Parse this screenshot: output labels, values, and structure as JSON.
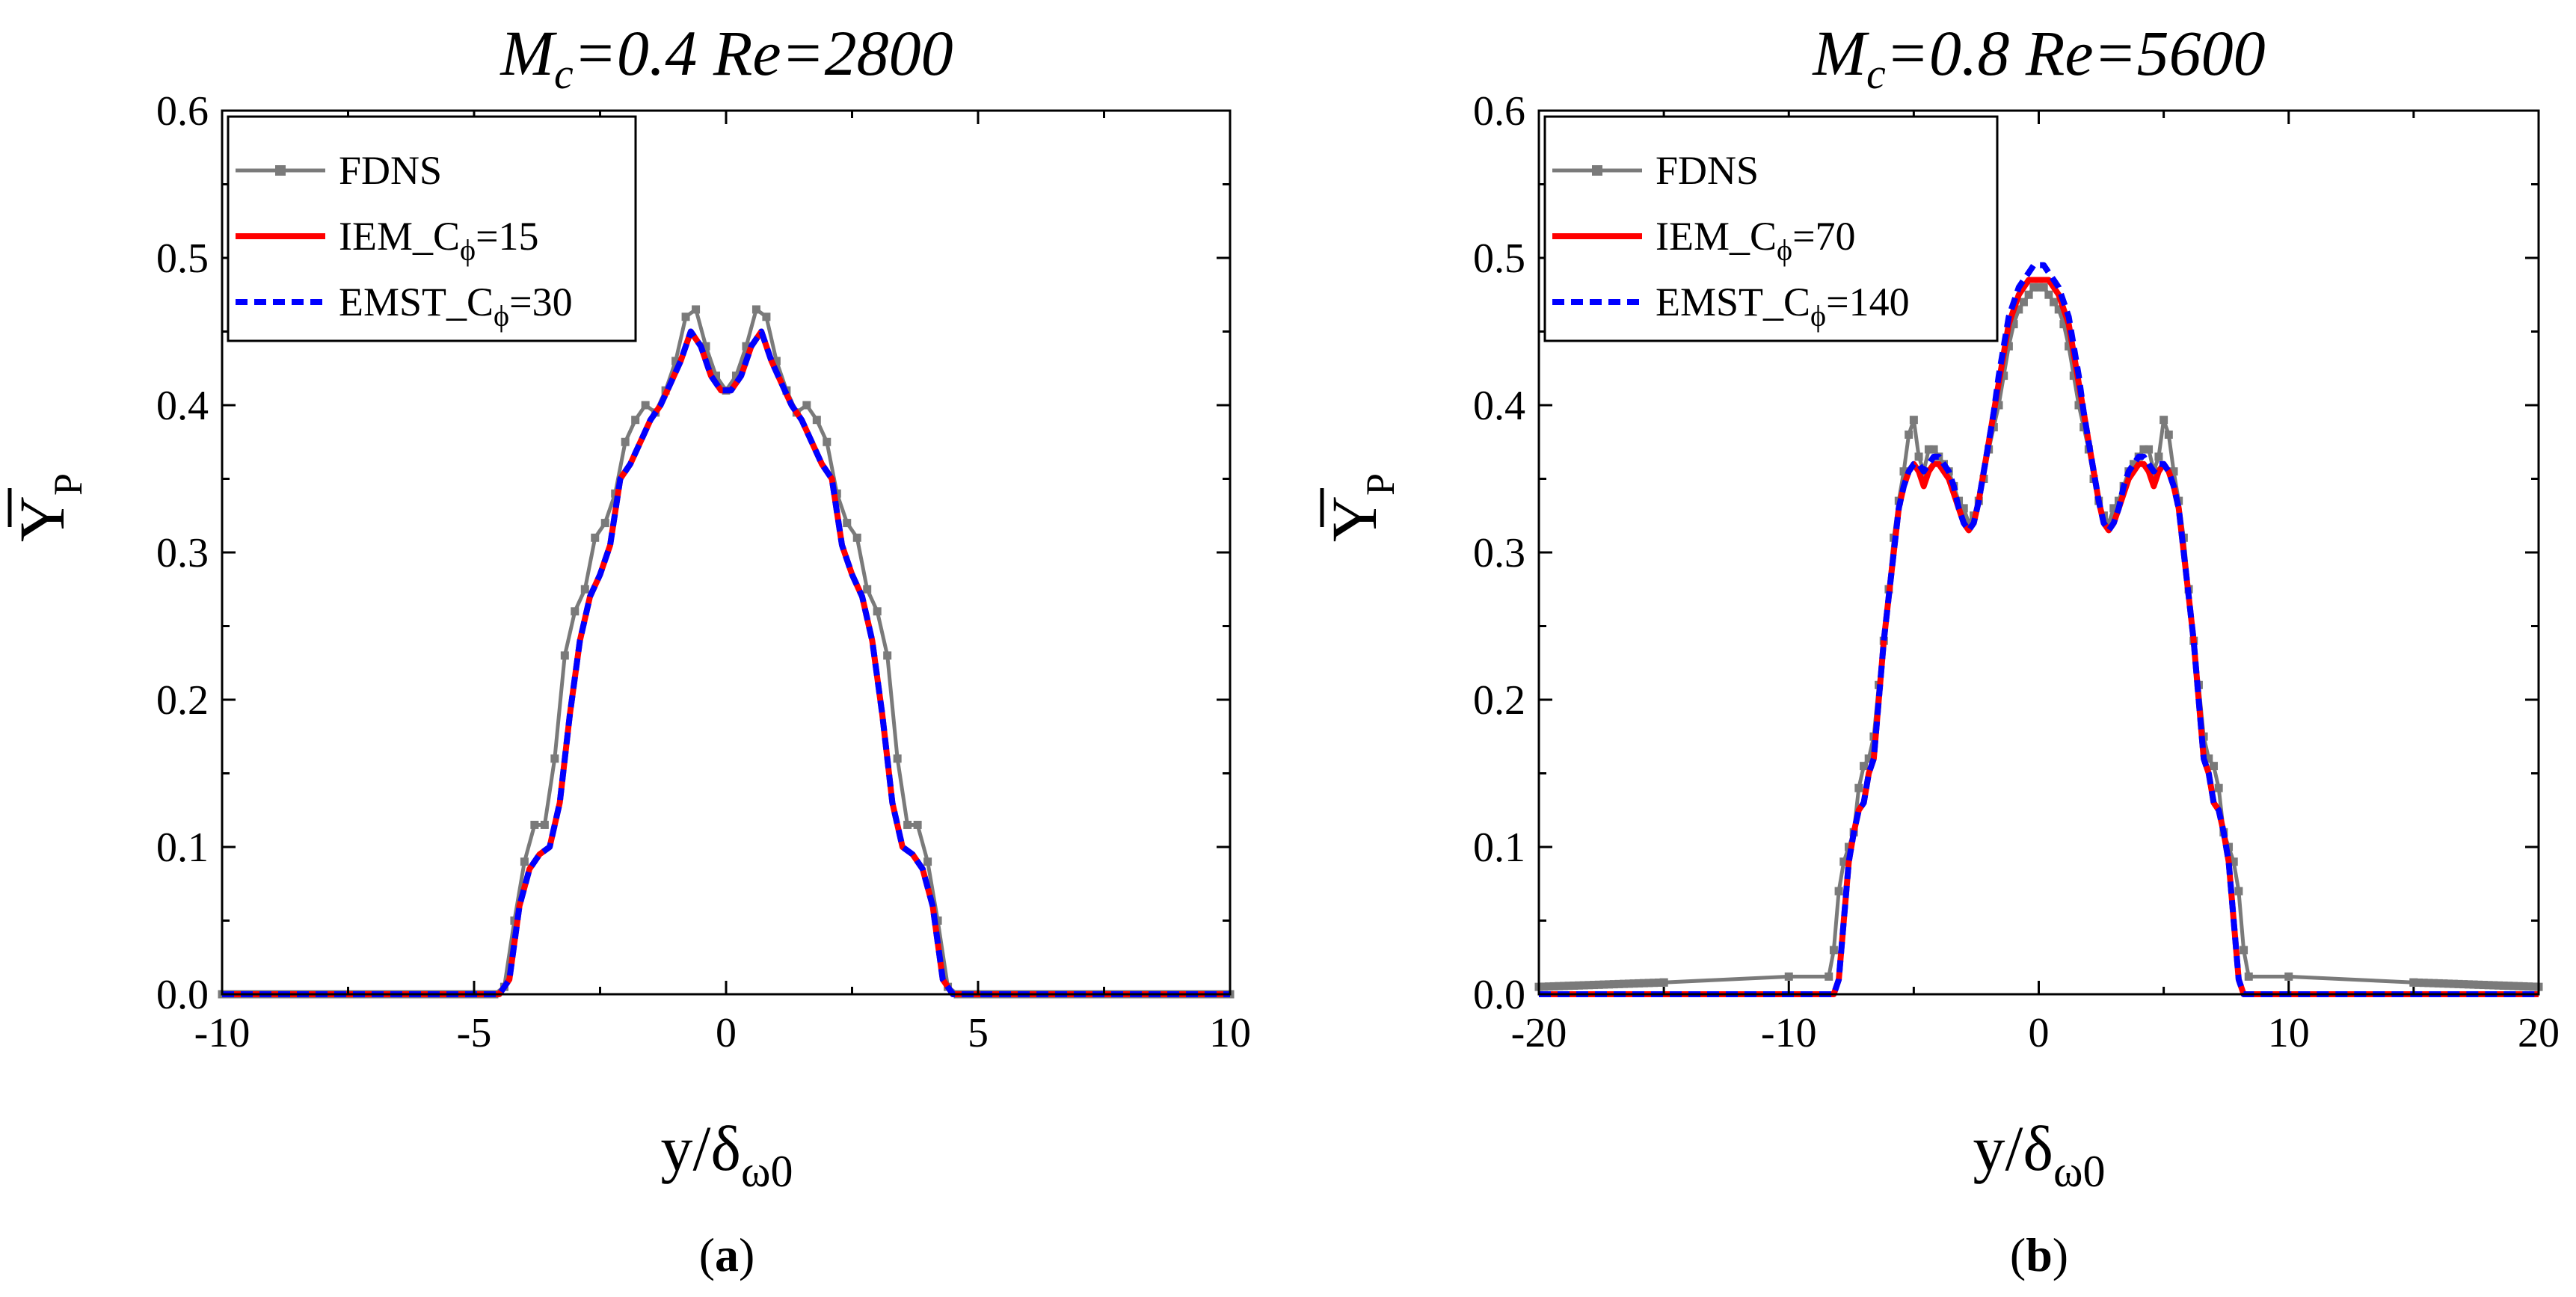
{
  "chart_data": [
    {
      "type": "line",
      "panel_label": "(a)",
      "panel_letter": "a",
      "title": "M_c=0.4  Re=2800",
      "title_parts": {
        "m": "M",
        "c": "c",
        "rest": "=0.4  Re=2800"
      },
      "xlabel": "y/δ_ω0",
      "ylabel": "Ȳ_P",
      "xlim": [
        -10,
        10
      ],
      "ylim": [
        0,
        0.6
      ],
      "xticks": [
        -10,
        -5,
        0,
        5,
        10
      ],
      "xtick_labels": [
        "-10",
        "-5",
        "0",
        "5",
        "10"
      ],
      "yticks": [
        0,
        0.1,
        0.2,
        0.3,
        0.4,
        0.5,
        0.6
      ],
      "ytick_labels": [
        "0.0",
        "0.1",
        "0.2",
        "0.3",
        "0.4",
        "0.5",
        "0.6"
      ],
      "legend": {
        "position": "top-left",
        "entries": [
          {
            "series": "FDNS",
            "label": "FDNS"
          },
          {
            "series": "IEM",
            "label": "IEM_C",
            "sub": "ϕ",
            "suffix": "=15"
          },
          {
            "series": "EMST",
            "label": "EMST_C",
            "sub": "ϕ",
            "suffix": "=30"
          }
        ]
      },
      "series": [
        {
          "name": "FDNS",
          "color": "#7a7a7a",
          "style": "line-square-markers",
          "x": [
            -10,
            -4.6,
            -4.4,
            -4.2,
            -4.0,
            -3.8,
            -3.6,
            -3.4,
            -3.2,
            -3.0,
            -2.8,
            -2.6,
            -2.4,
            -2.2,
            -2.0,
            -1.8,
            -1.6,
            -1.4,
            -1.2,
            -1.0,
            -0.8,
            -0.6,
            -0.4,
            -0.2,
            0,
            0.2,
            0.4,
            0.6,
            0.8,
            1.0,
            1.2,
            1.4,
            1.6,
            1.8,
            2.0,
            2.2,
            2.4,
            2.6,
            2.8,
            3.0,
            3.2,
            3.4,
            3.6,
            3.8,
            4.0,
            4.2,
            4.4,
            4.6,
            10
          ],
          "values": [
            0,
            0,
            0.005,
            0.05,
            0.09,
            0.115,
            0.115,
            0.16,
            0.23,
            0.26,
            0.275,
            0.31,
            0.32,
            0.34,
            0.375,
            0.39,
            0.4,
            0.395,
            0.41,
            0.43,
            0.46,
            0.465,
            0.44,
            0.42,
            0.41,
            0.42,
            0.44,
            0.465,
            0.46,
            0.43,
            0.41,
            0.395,
            0.4,
            0.39,
            0.375,
            0.34,
            0.32,
            0.31,
            0.275,
            0.26,
            0.23,
            0.16,
            0.115,
            0.115,
            0.09,
            0.05,
            0.005,
            0,
            0
          ]
        },
        {
          "name": "IEM",
          "color": "#ff0000",
          "style": "solid",
          "x": [
            -10,
            -4.5,
            -4.3,
            -4.1,
            -3.9,
            -3.7,
            -3.5,
            -3.3,
            -3.1,
            -2.9,
            -2.7,
            -2.5,
            -2.3,
            -2.1,
            -1.9,
            -1.7,
            -1.5,
            -1.3,
            -1.1,
            -0.9,
            -0.7,
            -0.5,
            -0.3,
            -0.1,
            0,
            0.1,
            0.3,
            0.5,
            0.7,
            0.9,
            1.1,
            1.3,
            1.5,
            1.7,
            1.9,
            2.1,
            2.3,
            2.5,
            2.7,
            2.9,
            3.1,
            3.3,
            3.5,
            3.7,
            3.9,
            4.1,
            4.3,
            4.5,
            10
          ],
          "values": [
            0,
            0,
            0.01,
            0.06,
            0.085,
            0.095,
            0.1,
            0.13,
            0.19,
            0.24,
            0.27,
            0.285,
            0.305,
            0.35,
            0.36,
            0.375,
            0.39,
            0.4,
            0.415,
            0.43,
            0.45,
            0.44,
            0.42,
            0.41,
            0.41,
            0.41,
            0.42,
            0.44,
            0.45,
            0.43,
            0.415,
            0.4,
            0.39,
            0.375,
            0.36,
            0.35,
            0.305,
            0.285,
            0.27,
            0.24,
            0.19,
            0.13,
            0.1,
            0.095,
            0.085,
            0.06,
            0.01,
            0,
            0
          ]
        },
        {
          "name": "EMST",
          "color": "#0000ff",
          "style": "dashed",
          "x": [
            -10,
            -4.5,
            -4.3,
            -4.1,
            -3.9,
            -3.7,
            -3.5,
            -3.3,
            -3.1,
            -2.9,
            -2.7,
            -2.5,
            -2.3,
            -2.1,
            -1.9,
            -1.7,
            -1.5,
            -1.3,
            -1.1,
            -0.9,
            -0.7,
            -0.5,
            -0.3,
            -0.1,
            0,
            0.1,
            0.3,
            0.5,
            0.7,
            0.9,
            1.1,
            1.3,
            1.5,
            1.7,
            1.9,
            2.1,
            2.3,
            2.5,
            2.7,
            2.9,
            3.1,
            3.3,
            3.5,
            3.7,
            3.9,
            4.1,
            4.3,
            4.5,
            10
          ],
          "values": [
            0,
            0,
            0.01,
            0.06,
            0.085,
            0.095,
            0.1,
            0.13,
            0.19,
            0.24,
            0.27,
            0.285,
            0.305,
            0.35,
            0.36,
            0.375,
            0.39,
            0.4,
            0.415,
            0.43,
            0.45,
            0.44,
            0.42,
            0.41,
            0.41,
            0.41,
            0.42,
            0.44,
            0.45,
            0.43,
            0.415,
            0.4,
            0.39,
            0.375,
            0.36,
            0.35,
            0.305,
            0.285,
            0.27,
            0.24,
            0.19,
            0.13,
            0.1,
            0.095,
            0.085,
            0.06,
            0.01,
            0,
            0
          ]
        }
      ]
    },
    {
      "type": "line",
      "panel_label": "(b)",
      "panel_letter": "b",
      "title": "M_c=0.8  Re=5600",
      "title_parts": {
        "m": "M",
        "c": "c",
        "rest": "=0.8  Re=5600"
      },
      "xlabel": "y/δ_ω0",
      "ylabel": "Ȳ_P",
      "xlim": [
        -20,
        20
      ],
      "ylim": [
        0,
        0.6
      ],
      "xticks": [
        -20,
        -10,
        0,
        10,
        20
      ],
      "xtick_labels": [
        "-20",
        "-10",
        "0",
        "10",
        "20"
      ],
      "yticks": [
        0,
        0.1,
        0.2,
        0.3,
        0.4,
        0.5,
        0.6
      ],
      "ytick_labels": [
        "0.0",
        "0.1",
        "0.2",
        "0.3",
        "0.4",
        "0.5",
        "0.6"
      ],
      "legend": {
        "position": "top-left",
        "entries": [
          {
            "series": "FDNS",
            "label": "FDNS"
          },
          {
            "series": "IEM",
            "label": "IEM_C",
            "sub": "ϕ",
            "suffix": "=70"
          },
          {
            "series": "EMST",
            "label": "EMST_C",
            "sub": "ϕ",
            "suffix": "=140"
          }
        ]
      },
      "series": [
        {
          "name": "FDNS",
          "color": "#7a7a7a",
          "style": "line-square-markers",
          "x": [
            -20,
            -15,
            -10,
            -8.4,
            -8.2,
            -8.0,
            -7.8,
            -7.6,
            -7.4,
            -7.2,
            -7.0,
            -6.8,
            -6.6,
            -6.4,
            -6.2,
            -6.0,
            -5.8,
            -5.6,
            -5.4,
            -5.2,
            -5.0,
            -4.8,
            -4.6,
            -4.4,
            -4.2,
            -4.0,
            -3.8,
            -3.6,
            -3.4,
            -3.2,
            -3.0,
            -2.8,
            -2.6,
            -2.4,
            -2.2,
            -2.0,
            -1.8,
            -1.6,
            -1.4,
            -1.2,
            -1.0,
            -0.8,
            -0.6,
            -0.4,
            -0.2,
            0,
            0.2,
            0.4,
            0.6,
            0.8,
            1.0,
            1.2,
            1.4,
            1.6,
            1.8,
            2.0,
            2.2,
            2.4,
            2.6,
            2.8,
            3.0,
            3.2,
            3.4,
            3.6,
            3.8,
            4.0,
            4.2,
            4.4,
            4.6,
            4.8,
            5.0,
            5.2,
            5.4,
            5.6,
            5.8,
            6.0,
            6.2,
            6.4,
            6.6,
            6.8,
            7.0,
            7.2,
            7.4,
            7.6,
            7.8,
            8.0,
            8.2,
            8.4,
            10,
            15,
            20
          ],
          "values": [
            0.005,
            0.008,
            0.012,
            0.012,
            0.03,
            0.07,
            0.09,
            0.1,
            0.11,
            0.14,
            0.155,
            0.16,
            0.175,
            0.21,
            0.24,
            0.275,
            0.31,
            0.335,
            0.355,
            0.38,
            0.39,
            0.365,
            0.355,
            0.37,
            0.37,
            0.365,
            0.36,
            0.355,
            0.345,
            0.335,
            0.33,
            0.32,
            0.325,
            0.335,
            0.35,
            0.37,
            0.385,
            0.4,
            0.42,
            0.44,
            0.455,
            0.465,
            0.47,
            0.475,
            0.48,
            0.48,
            0.48,
            0.475,
            0.47,
            0.465,
            0.455,
            0.44,
            0.42,
            0.4,
            0.385,
            0.37,
            0.35,
            0.335,
            0.325,
            0.32,
            0.33,
            0.335,
            0.345,
            0.355,
            0.36,
            0.365,
            0.37,
            0.37,
            0.355,
            0.365,
            0.39,
            0.38,
            0.355,
            0.335,
            0.31,
            0.275,
            0.24,
            0.21,
            0.175,
            0.16,
            0.155,
            0.14,
            0.11,
            0.1,
            0.09,
            0.07,
            0.03,
            0.012,
            0.012,
            0.008,
            0.005
          ]
        },
        {
          "name": "IEM",
          "color": "#ff0000",
          "style": "solid",
          "x": [
            -20,
            -8.2,
            -8.0,
            -7.8,
            -7.6,
            -7.4,
            -7.2,
            -7.0,
            -6.8,
            -6.6,
            -6.4,
            -6.2,
            -6.0,
            -5.8,
            -5.6,
            -5.4,
            -5.2,
            -5.0,
            -4.8,
            -4.6,
            -4.4,
            -4.2,
            -4.0,
            -3.8,
            -3.6,
            -3.4,
            -3.2,
            -3.0,
            -2.8,
            -2.6,
            -2.4,
            -2.2,
            -2.0,
            -1.8,
            -1.6,
            -1.4,
            -1.2,
            -1.0,
            -0.8,
            -0.6,
            -0.4,
            -0.2,
            0,
            0.2,
            0.4,
            0.6,
            0.8,
            1.0,
            1.2,
            1.4,
            1.6,
            1.8,
            2.0,
            2.2,
            2.4,
            2.6,
            2.8,
            3.0,
            3.2,
            3.4,
            3.6,
            3.8,
            4.0,
            4.2,
            4.4,
            4.6,
            4.8,
            5.0,
            5.2,
            5.4,
            5.6,
            5.8,
            6.0,
            6.2,
            6.4,
            6.6,
            6.8,
            7.0,
            7.2,
            7.4,
            7.6,
            7.8,
            8.0,
            8.2,
            20
          ],
          "values": [
            0,
            0,
            0.01,
            0.05,
            0.09,
            0.11,
            0.125,
            0.13,
            0.15,
            0.16,
            0.2,
            0.24,
            0.27,
            0.3,
            0.33,
            0.345,
            0.355,
            0.36,
            0.355,
            0.345,
            0.355,
            0.36,
            0.36,
            0.355,
            0.35,
            0.34,
            0.33,
            0.32,
            0.315,
            0.32,
            0.335,
            0.355,
            0.375,
            0.395,
            0.415,
            0.435,
            0.455,
            0.465,
            0.475,
            0.48,
            0.485,
            0.485,
            0.485,
            0.485,
            0.485,
            0.48,
            0.475,
            0.465,
            0.455,
            0.435,
            0.415,
            0.395,
            0.375,
            0.355,
            0.335,
            0.32,
            0.315,
            0.32,
            0.33,
            0.34,
            0.35,
            0.355,
            0.36,
            0.36,
            0.355,
            0.345,
            0.355,
            0.36,
            0.355,
            0.345,
            0.33,
            0.3,
            0.27,
            0.24,
            0.2,
            0.16,
            0.15,
            0.13,
            0.125,
            0.11,
            0.09,
            0.05,
            0.01,
            0,
            0
          ]
        },
        {
          "name": "EMST",
          "color": "#0000ff",
          "style": "dashed",
          "x": [
            -20,
            -8.2,
            -8.0,
            -7.8,
            -7.6,
            -7.4,
            -7.2,
            -7.0,
            -6.8,
            -6.6,
            -6.4,
            -6.2,
            -6.0,
            -5.8,
            -5.6,
            -5.4,
            -5.2,
            -5.0,
            -4.8,
            -4.6,
            -4.4,
            -4.2,
            -4.0,
            -3.8,
            -3.6,
            -3.4,
            -3.2,
            -3.0,
            -2.8,
            -2.6,
            -2.4,
            -2.2,
            -2.0,
            -1.8,
            -1.6,
            -1.4,
            -1.2,
            -1.0,
            -0.8,
            -0.6,
            -0.4,
            -0.2,
            0,
            0.2,
            0.4,
            0.6,
            0.8,
            1.0,
            1.2,
            1.4,
            1.6,
            1.8,
            2.0,
            2.2,
            2.4,
            2.6,
            2.8,
            3.0,
            3.2,
            3.4,
            3.6,
            3.8,
            4.0,
            4.2,
            4.4,
            4.6,
            4.8,
            5.0,
            5.2,
            5.4,
            5.6,
            5.8,
            6.0,
            6.2,
            6.4,
            6.6,
            6.8,
            7.0,
            7.2,
            7.4,
            7.6,
            7.8,
            8.0,
            8.2,
            20
          ],
          "values": [
            0,
            0,
            0.01,
            0.05,
            0.09,
            0.11,
            0.125,
            0.13,
            0.15,
            0.16,
            0.2,
            0.24,
            0.27,
            0.3,
            0.33,
            0.345,
            0.355,
            0.36,
            0.36,
            0.355,
            0.36,
            0.365,
            0.365,
            0.36,
            0.355,
            0.345,
            0.33,
            0.32,
            0.315,
            0.32,
            0.335,
            0.355,
            0.375,
            0.395,
            0.42,
            0.44,
            0.46,
            0.47,
            0.48,
            0.485,
            0.49,
            0.495,
            0.495,
            0.495,
            0.49,
            0.485,
            0.48,
            0.47,
            0.46,
            0.44,
            0.42,
            0.395,
            0.375,
            0.355,
            0.335,
            0.32,
            0.315,
            0.32,
            0.33,
            0.345,
            0.355,
            0.36,
            0.365,
            0.365,
            0.36,
            0.355,
            0.36,
            0.36,
            0.355,
            0.345,
            0.33,
            0.3,
            0.27,
            0.24,
            0.2,
            0.16,
            0.15,
            0.13,
            0.125,
            0.11,
            0.09,
            0.05,
            0.01,
            0,
            0
          ]
        }
      ]
    }
  ]
}
